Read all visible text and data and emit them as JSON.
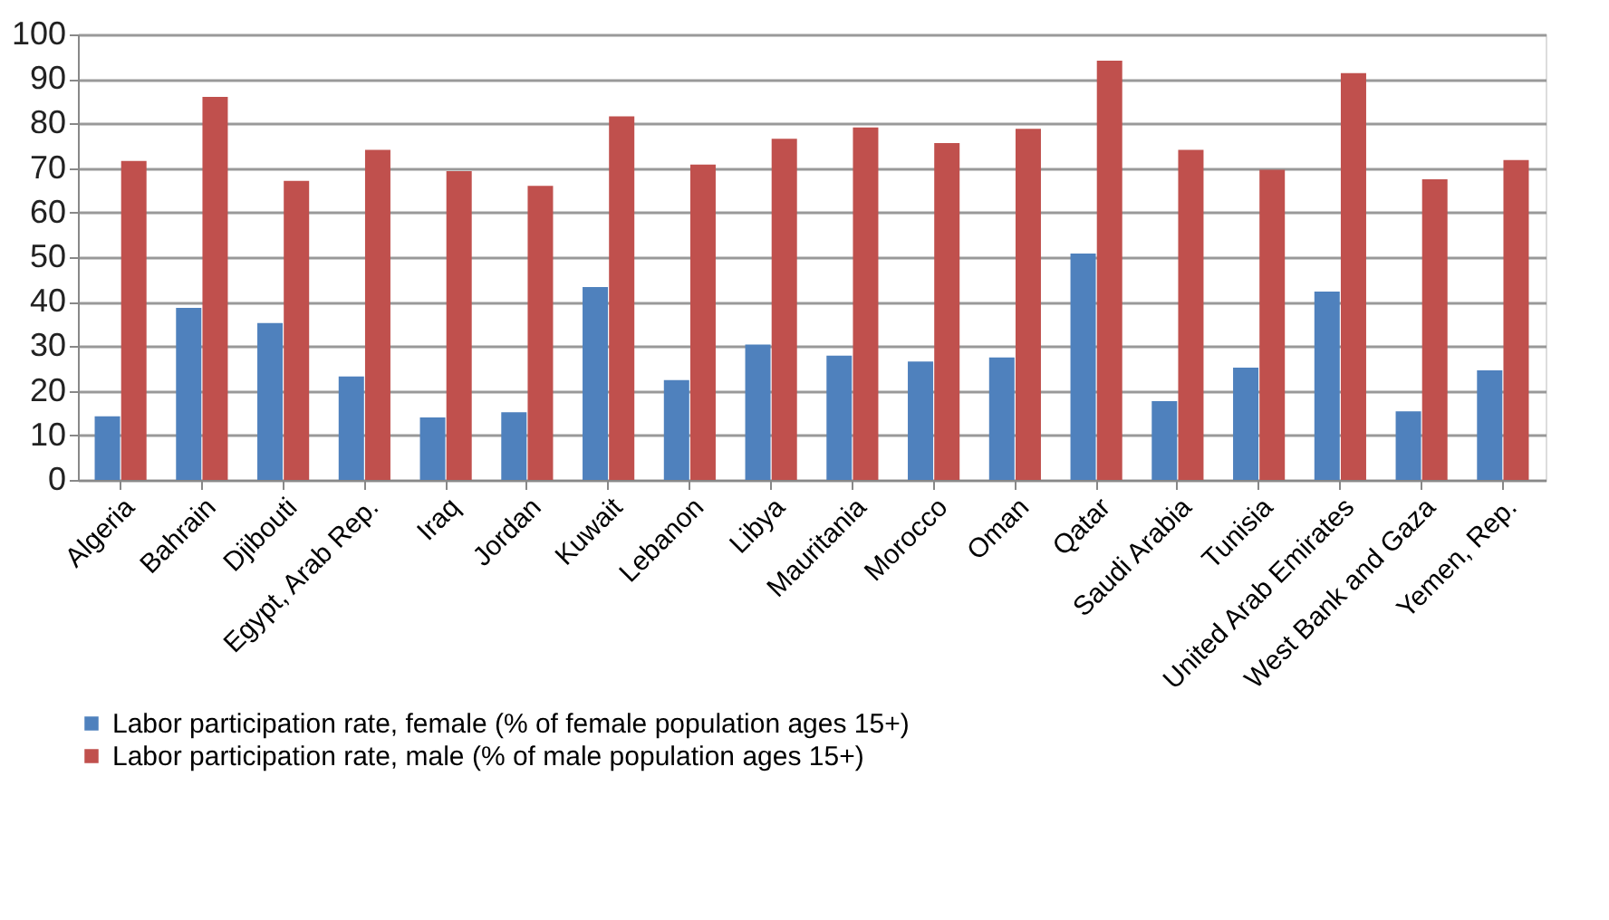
{
  "chart_data": {
    "type": "bar",
    "categories": [
      "Algeria",
      "Bahrain",
      "Djibouti",
      "Egypt, Arab Rep.",
      "Iraq",
      "Jordan",
      "Kuwait",
      "Lebanon",
      "Libya",
      "Mauritania",
      "Morocco",
      "Oman",
      "Qatar",
      "Saudi Arabia",
      "Tunisia",
      "United Arab Emirates",
      "West Bank and Gaza",
      "Yemen, Rep."
    ],
    "series": [
      {
        "name": "Labor participation rate, female (% of female population ages 15+)",
        "color": "#4f81bd",
        "values": [
          14.3,
          38.6,
          35.2,
          23.2,
          14.0,
          15.2,
          43.3,
          22.4,
          30.4,
          27.9,
          26.6,
          27.5,
          50.8,
          17.7,
          25.2,
          42.3,
          15.4,
          24.6
        ]
      },
      {
        "name": "Labor participation rate, male (% of male population ages 15+)",
        "color": "#c0504d",
        "values": [
          71.6,
          86.0,
          67.1,
          74.1,
          69.3,
          66.0,
          81.6,
          70.8,
          76.6,
          79.1,
          75.6,
          78.8,
          94.1,
          74.1,
          69.6,
          91.3,
          67.5,
          71.8
        ]
      }
    ],
    "ylim": [
      0,
      100
    ],
    "yticks": [
      0,
      10,
      20,
      30,
      40,
      50,
      60,
      70,
      80,
      90,
      100
    ],
    "grid": "y",
    "legend": "bottom"
  }
}
